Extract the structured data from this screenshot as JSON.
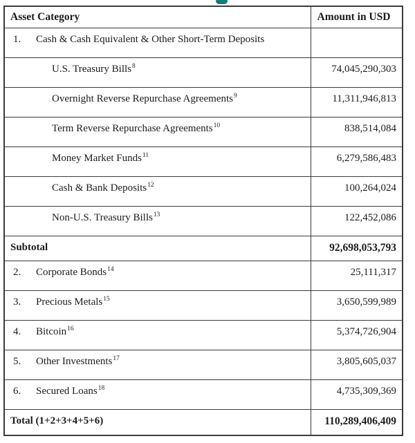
{
  "page": {
    "background": "#ffffff",
    "border_color": "#3a3a3a",
    "text_color": "#1c1c1c",
    "accent_teal": "#0e7d7d",
    "decoration": {
      "partial_title_glyph": "cropped teal letter fragment at top center"
    }
  },
  "table": {
    "headers": {
      "asset": "Asset Category",
      "amount": "Amount in USD"
    },
    "rows": [
      {
        "type": "category",
        "num": "1.",
        "label": "Cash & Cash Equivalent & Other Short-Term Deposits",
        "sup": "",
        "amount": ""
      },
      {
        "type": "sub",
        "num": "",
        "label": "U.S. Treasury Bills",
        "sup": "8",
        "amount": "74,045,290,303"
      },
      {
        "type": "sub",
        "num": "",
        "label": "Overnight Reverse Repurchase Agreements",
        "sup": "9",
        "amount": "11,311,946,813"
      },
      {
        "type": "sub",
        "num": "",
        "label": "Term Reverse Repurchase Agreements",
        "sup": "10",
        "amount": "838,514,084"
      },
      {
        "type": "sub",
        "num": "",
        "label": "Money Market Funds",
        "sup": "11",
        "amount": "6,279,586,483"
      },
      {
        "type": "sub",
        "num": "",
        "label": "Cash & Bank Deposits",
        "sup": "12",
        "amount": "100,264,024"
      },
      {
        "type": "sub",
        "num": "",
        "label": "Non-U.S. Treasury Bills",
        "sup": "13",
        "amount": "122,452,086"
      },
      {
        "type": "subtotal",
        "num": "",
        "label": "Subtotal",
        "sup": "",
        "amount": "92,698,053,793"
      },
      {
        "type": "category",
        "num": "2.",
        "label": "Corporate Bonds",
        "sup": "14",
        "amount": "25,111,317"
      },
      {
        "type": "category",
        "num": "3.",
        "label": "Precious Metals",
        "sup": "15",
        "amount": "3,650,599,989"
      },
      {
        "type": "category",
        "num": "4.",
        "label": "Bitcoin",
        "sup": "16",
        "amount": "5,374,726,904"
      },
      {
        "type": "category",
        "num": "5.",
        "label": "Other Investments",
        "sup": "17",
        "amount": "3,805,605,037"
      },
      {
        "type": "category",
        "num": "6.",
        "label": "Secured Loans",
        "sup": "18",
        "amount": "4,735,309,369"
      },
      {
        "type": "total",
        "num": "",
        "label": "Total (1+2+3+4+5+6)",
        "sup": "",
        "amount": "110,289,406,409"
      }
    ]
  }
}
